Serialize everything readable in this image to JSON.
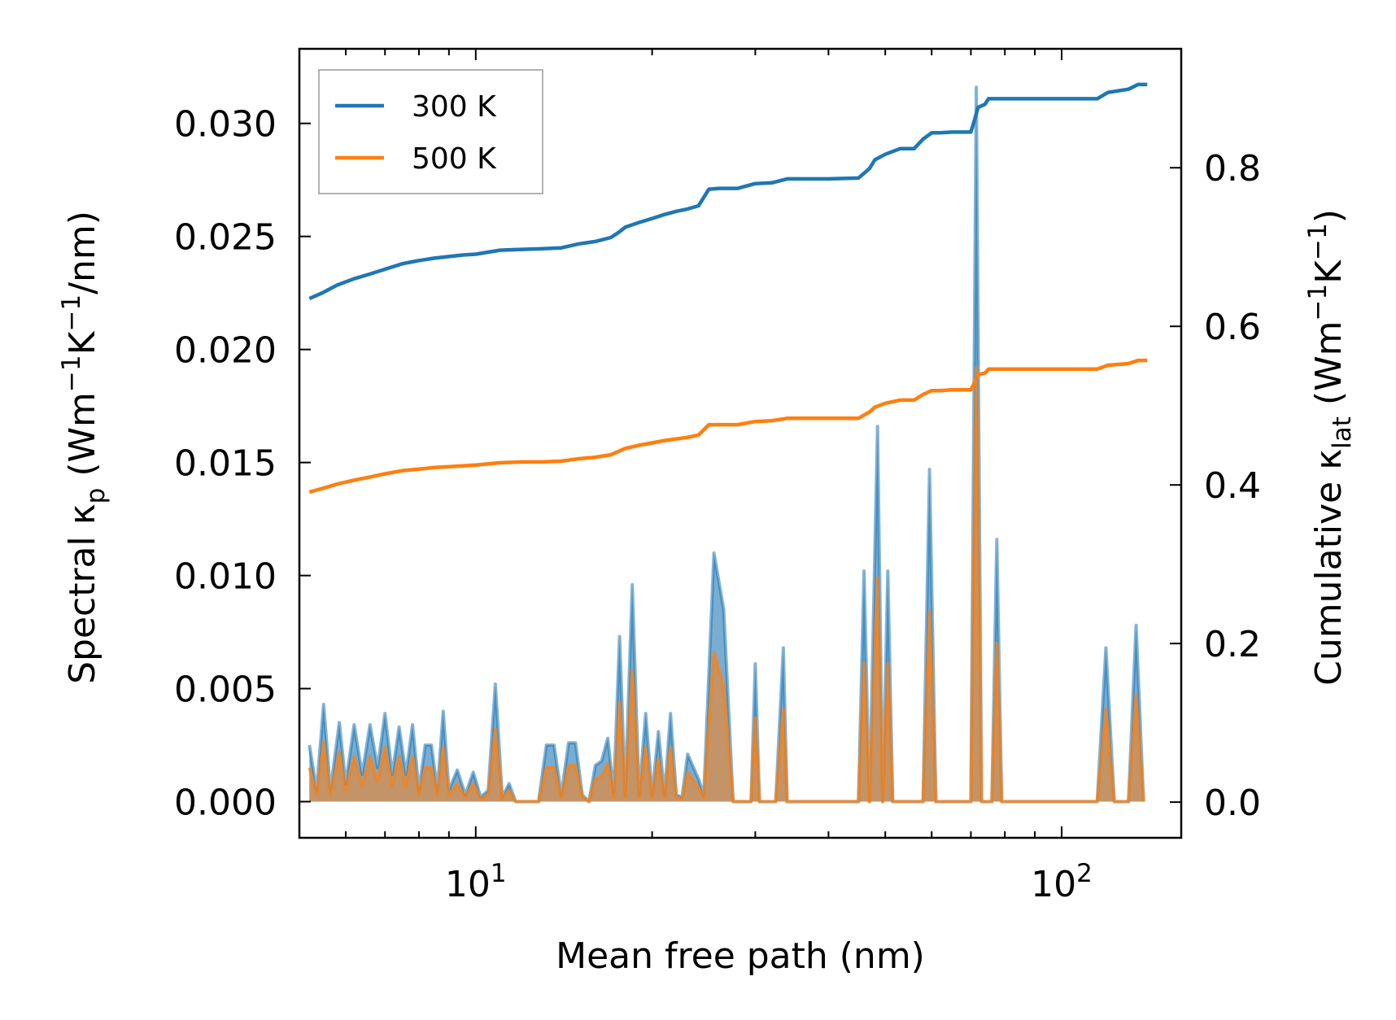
{
  "chart_data": {
    "type": "line",
    "xscale": "log",
    "xlim": [
      5.0,
      160.0
    ],
    "xlabel": "Mean free path (nm)",
    "xticks": [
      10,
      100
    ],
    "xtick_labels": [
      {
        "base": "10",
        "exp": "1"
      },
      {
        "base": "10",
        "exp": "2"
      }
    ],
    "left_axis": {
      "label": "Spectral κ_p (Wm⁻¹K⁻¹/nm)",
      "label_parts": {
        "pre": "Spectral κ",
        "sub": "p",
        "mid": " (Wm",
        "sup1": "−1",
        "mid2": "K",
        "sup2": "−1",
        "post": "/nm)"
      },
      "ylim": [
        -0.0016,
        0.0333
      ],
      "ticks": [
        0.0,
        0.005,
        0.01,
        0.015,
        0.02,
        0.025,
        0.03
      ],
      "tick_labels": [
        "0.000",
        "0.005",
        "0.010",
        "0.015",
        "0.020",
        "0.025",
        "0.030"
      ]
    },
    "right_axis": {
      "label": "Cumulative κ_lat (Wm⁻¹K⁻¹)",
      "label_parts": {
        "pre": "Cumulative κ",
        "sub": "lat",
        "mid": " (Wm",
        "sup1": "−1",
        "mid2": "K",
        "sup2": "−1",
        "post": ")"
      },
      "ylim": [
        -0.045,
        0.95
      ],
      "ticks": [
        0.0,
        0.2,
        0.4,
        0.6,
        0.8
      ],
      "tick_labels": [
        "0.0",
        "0.2",
        "0.4",
        "0.6",
        "0.8"
      ]
    },
    "legend": {
      "position": "top-left",
      "entries": [
        {
          "name": "300 K",
          "color": "#1f77b4"
        },
        {
          "name": "500 K",
          "color": "#ff7f0e"
        }
      ]
    },
    "spectral_series": [
      {
        "name": "300 K",
        "color": "#1f77b4",
        "x": [
          5.2,
          5.35,
          5.5,
          5.65,
          5.85,
          6.0,
          6.2,
          6.4,
          6.6,
          6.8,
          7.0,
          7.2,
          7.4,
          7.6,
          7.8,
          8.0,
          8.2,
          8.4,
          8.6,
          8.8,
          9.0,
          9.3,
          9.6,
          9.9,
          10.2,
          10.5,
          10.8,
          11.1,
          11.4,
          11.7,
          12.0,
          12.4,
          12.8,
          13.2,
          13.6,
          14.0,
          14.4,
          14.8,
          15.2,
          15.6,
          16.0,
          16.4,
          16.8,
          17.2,
          17.6,
          18.0,
          18.5,
          19.0,
          19.5,
          20.0,
          20.5,
          21.0,
          21.5,
          22.0,
          22.5,
          23.0,
          24.0,
          24.5,
          25.5,
          26.5,
          27.5,
          29.5,
          30.0,
          30.5,
          31.5,
          32.5,
          33.5,
          34.0,
          34.5,
          35.5,
          45.0,
          46.0,
          47.0,
          48.5,
          49.5,
          50.5,
          51.5,
          52.5,
          58.0,
          59.5,
          61.0,
          70.0,
          71.5,
          73.0,
          76.0,
          77.5,
          79.0,
          115.0,
          119.0,
          123.0,
          130.0,
          134.0,
          138.0
        ],
        "y": [
          0.0025,
          0.0005,
          0.0043,
          0.0005,
          0.0035,
          0.0008,
          0.0034,
          0.0012,
          0.0034,
          0.0015,
          0.0039,
          0.0012,
          0.0033,
          0.0012,
          0.0034,
          0.0005,
          0.0025,
          0.0025,
          0.0005,
          0.004,
          0.0005,
          0.0014,
          0.0003,
          0.0013,
          0.0002,
          0.0005,
          0.0052,
          0.0002,
          0.0008,
          0.0,
          0.0,
          0.0,
          0.0,
          0.0025,
          0.0025,
          0.0003,
          0.0026,
          0.0026,
          0.0003,
          0.0,
          0.0016,
          0.0018,
          0.0028,
          0.0004,
          0.0073,
          0.0003,
          0.0096,
          0.0003,
          0.0039,
          0.0003,
          0.0031,
          0.0003,
          0.0039,
          0.0003,
          0.0002,
          0.0021,
          0.001,
          0.0003,
          0.011,
          0.0085,
          0.0,
          0.0,
          0.0061,
          0.0,
          0.0,
          0.0,
          0.0068,
          0.0,
          0.0,
          0.0,
          0.0,
          0.0102,
          0.0,
          0.0166,
          0.0,
          0.0102,
          0.0,
          0.0,
          0.0,
          0.0147,
          0.0,
          0.0,
          0.0316,
          0.0,
          0.0,
          0.0116,
          0.0,
          0.0,
          0.0068,
          0.0,
          0.0,
          0.0078,
          0.0
        ]
      },
      {
        "name": "500 K",
        "color": "#ff7f0e",
        "x": [
          5.2,
          5.35,
          5.5,
          5.65,
          5.85,
          6.0,
          6.2,
          6.4,
          6.6,
          6.8,
          7.0,
          7.2,
          7.4,
          7.6,
          7.8,
          8.0,
          8.2,
          8.4,
          8.6,
          8.8,
          9.0,
          9.3,
          9.6,
          9.9,
          10.2,
          10.5,
          10.8,
          11.1,
          11.4,
          11.7,
          12.0,
          12.4,
          12.8,
          13.2,
          13.6,
          14.0,
          14.4,
          14.8,
          15.2,
          15.6,
          16.0,
          16.4,
          16.8,
          17.2,
          17.6,
          18.0,
          18.5,
          19.0,
          19.5,
          20.0,
          20.5,
          21.0,
          21.5,
          22.0,
          22.5,
          23.0,
          24.0,
          24.5,
          25.5,
          26.5,
          27.5,
          29.5,
          30.0,
          30.5,
          31.5,
          32.5,
          33.5,
          34.0,
          34.5,
          35.5,
          45.0,
          46.0,
          47.0,
          48.5,
          49.5,
          50.5,
          51.5,
          52.5,
          58.0,
          59.5,
          61.0,
          70.0,
          71.5,
          73.0,
          76.0,
          77.5,
          79.0,
          115.0,
          119.0,
          123.0,
          130.0,
          134.0,
          138.0
        ],
        "y": [
          0.0015,
          0.0003,
          0.0026,
          0.0003,
          0.0022,
          0.0005,
          0.002,
          0.0007,
          0.002,
          0.0009,
          0.0024,
          0.0007,
          0.002,
          0.0007,
          0.002,
          0.0003,
          0.0015,
          0.0015,
          0.0003,
          0.0024,
          0.0003,
          0.0008,
          0.0002,
          0.0008,
          0.0001,
          0.0003,
          0.0032,
          0.0001,
          0.0005,
          0.0,
          0.0,
          0.0,
          0.0,
          0.0015,
          0.0015,
          0.0002,
          0.0016,
          0.0016,
          0.0002,
          0.0,
          0.001,
          0.0011,
          0.0017,
          0.0002,
          0.0044,
          0.0002,
          0.0058,
          0.0002,
          0.0024,
          0.0002,
          0.0019,
          0.0002,
          0.0024,
          0.0002,
          0.0001,
          0.0013,
          0.0006,
          0.0002,
          0.0066,
          0.0051,
          0.0,
          0.0,
          0.0037,
          0.0,
          0.0,
          0.0,
          0.0041,
          0.0,
          0.0,
          0.0,
          0.0,
          0.0061,
          0.0,
          0.0099,
          0.0,
          0.0061,
          0.0,
          0.0,
          0.0,
          0.0084,
          0.0,
          0.0,
          0.0192,
          0.0,
          0.0,
          0.007,
          0.0,
          0.0,
          0.0041,
          0.0,
          0.0,
          0.0047,
          0.0
        ]
      }
    ],
    "cumulative_series": [
      {
        "name": "300 K",
        "color": "#1f77b4",
        "x": [
          5.2,
          5.5,
          5.8,
          6.2,
          6.6,
          7.0,
          7.5,
          8.0,
          8.5,
          9.0,
          9.5,
          10.0,
          11.0,
          12.0,
          13.0,
          14.0,
          15.0,
          16.0,
          17.0,
          17.5,
          18.0,
          19.0,
          20.0,
          21.0,
          22.0,
          23.0,
          24.0,
          25.0,
          26.0,
          28.0,
          30.0,
          32.0,
          34.0,
          36.0,
          40.0,
          45.0,
          47.0,
          48.0,
          50.0,
          53.0,
          56.0,
          58.0,
          60.0,
          62.0,
          65.0,
          70.0,
          71.0,
          72.0,
          74.0,
          75.0,
          80.0,
          90.0,
          100.0,
          115.0,
          120.0,
          130.0,
          135.0,
          140.0
        ],
        "y": [
          0.635,
          0.643,
          0.652,
          0.66,
          0.666,
          0.672,
          0.679,
          0.683,
          0.686,
          0.688,
          0.69,
          0.691,
          0.696,
          0.697,
          0.698,
          0.699,
          0.704,
          0.707,
          0.712,
          0.718,
          0.725,
          0.731,
          0.736,
          0.741,
          0.745,
          0.748,
          0.752,
          0.773,
          0.774,
          0.774,
          0.78,
          0.781,
          0.786,
          0.786,
          0.786,
          0.787,
          0.799,
          0.81,
          0.817,
          0.824,
          0.824,
          0.836,
          0.844,
          0.844,
          0.845,
          0.845,
          0.86,
          0.876,
          0.88,
          0.887,
          0.887,
          0.887,
          0.887,
          0.887,
          0.895,
          0.899,
          0.905,
          0.905
        ]
      },
      {
        "name": "500 K",
        "color": "#ff7f0e",
        "x": [
          5.2,
          5.5,
          5.8,
          6.2,
          6.6,
          7.0,
          7.5,
          8.0,
          8.5,
          9.0,
          9.5,
          10.0,
          11.0,
          12.0,
          13.0,
          14.0,
          15.0,
          16.0,
          17.0,
          17.5,
          18.0,
          19.0,
          20.0,
          21.0,
          22.0,
          23.0,
          24.0,
          25.0,
          26.0,
          28.0,
          30.0,
          32.0,
          34.0,
          36.0,
          40.0,
          45.0,
          47.0,
          48.0,
          50.0,
          53.0,
          56.0,
          58.0,
          60.0,
          62.0,
          65.0,
          70.0,
          71.0,
          72.0,
          74.0,
          75.0,
          80.0,
          90.0,
          100.0,
          115.0,
          120.0,
          130.0,
          135.0,
          140.0
        ],
        "y": [
          0.391,
          0.396,
          0.401,
          0.406,
          0.41,
          0.414,
          0.418,
          0.42,
          0.422,
          0.423,
          0.424,
          0.425,
          0.428,
          0.429,
          0.429,
          0.43,
          0.433,
          0.435,
          0.438,
          0.442,
          0.446,
          0.45,
          0.453,
          0.456,
          0.458,
          0.46,
          0.463,
          0.476,
          0.476,
          0.476,
          0.48,
          0.481,
          0.484,
          0.484,
          0.484,
          0.484,
          0.492,
          0.498,
          0.503,
          0.507,
          0.507,
          0.514,
          0.519,
          0.519,
          0.52,
          0.52,
          0.529,
          0.539,
          0.541,
          0.546,
          0.546,
          0.546,
          0.546,
          0.546,
          0.551,
          0.553,
          0.557,
          0.557
        ]
      }
    ]
  }
}
